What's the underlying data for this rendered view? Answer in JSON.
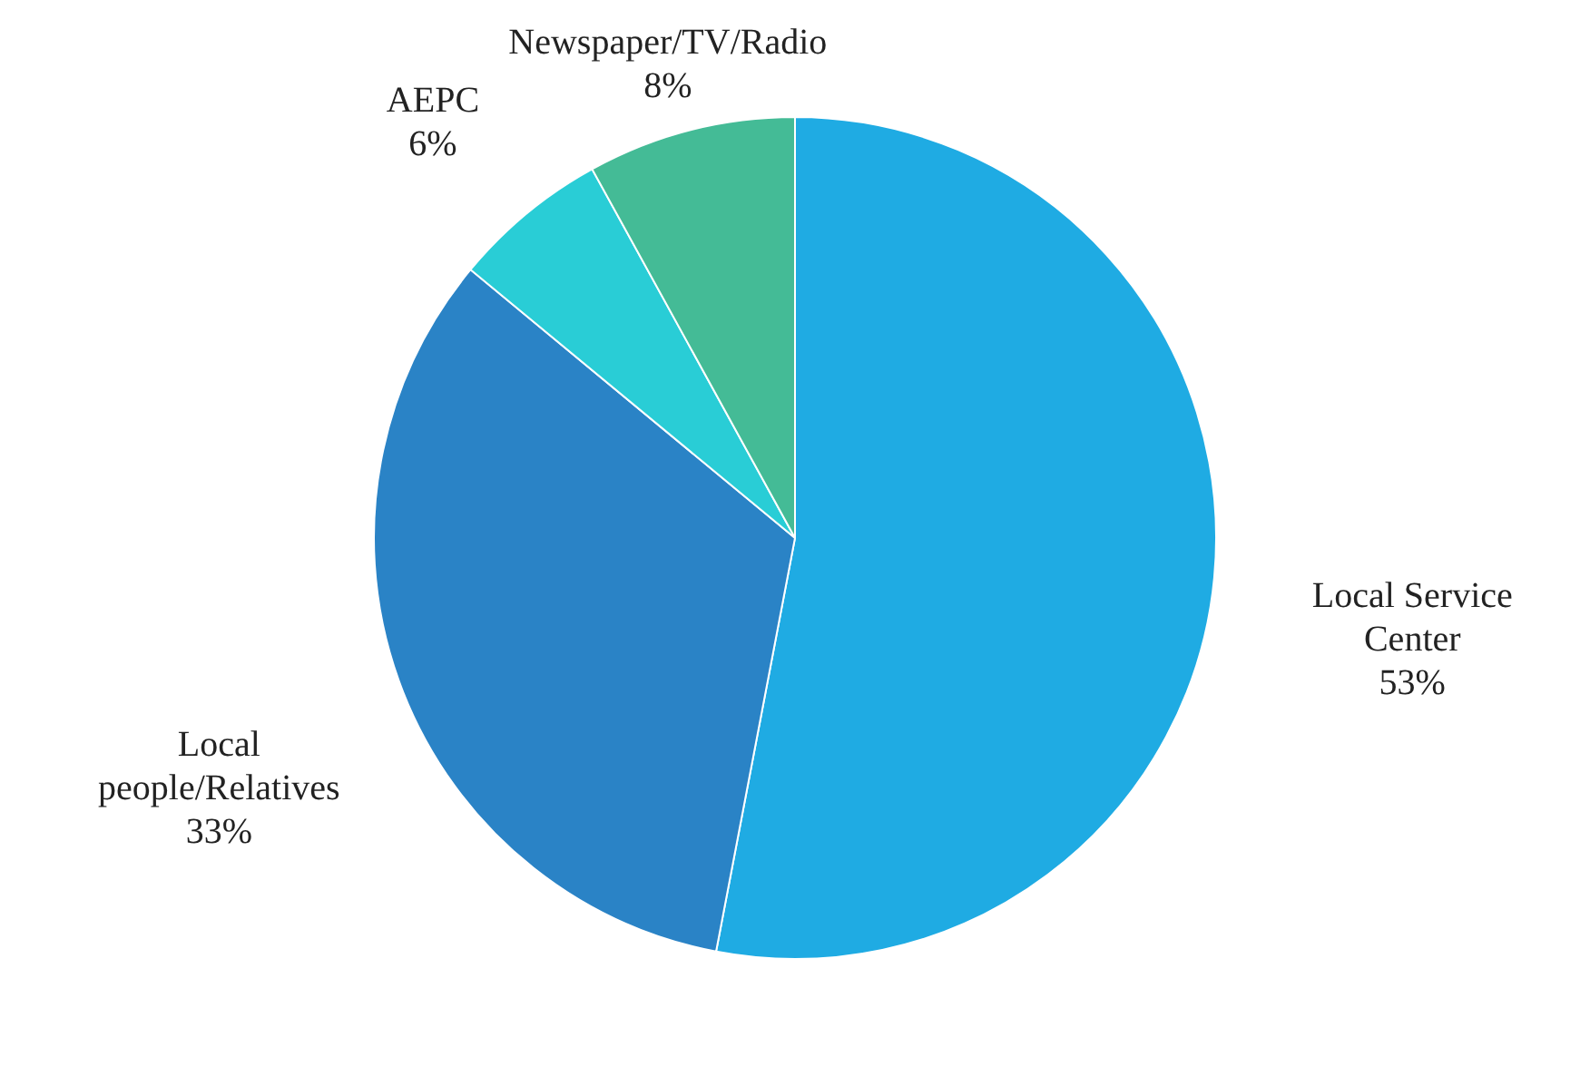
{
  "chart_data": {
    "type": "pie",
    "categories": [
      "Local Service Center",
      "Local people/Relatives",
      "AEPC",
      "Newspaper/TV/Radio"
    ],
    "values": [
      53,
      33,
      6,
      8
    ],
    "value_labels": [
      "53%",
      "33%",
      "6%",
      "8%"
    ],
    "colors": [
      "#1fabe3",
      "#2a83c6",
      "#29cdd6",
      "#44bb96"
    ]
  }
}
